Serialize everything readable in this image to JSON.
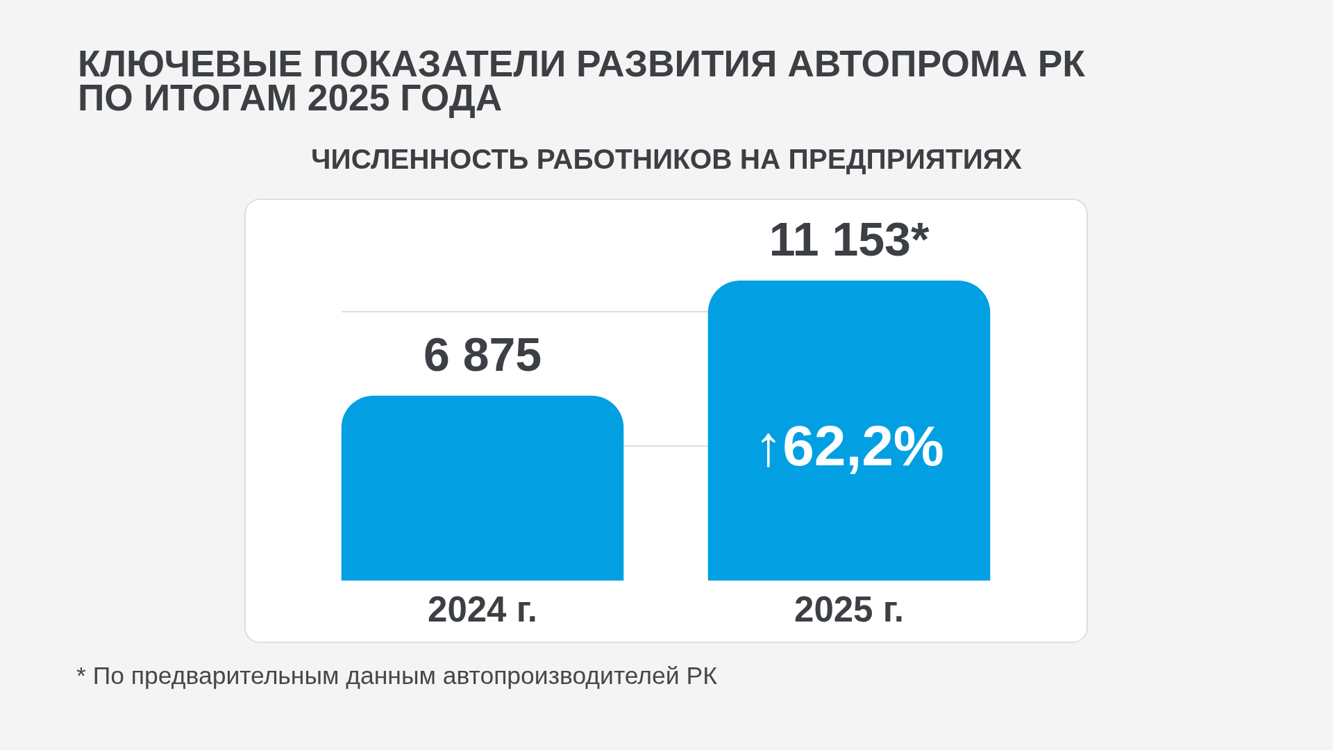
{
  "chart_data": {
    "type": "bar",
    "title": "КЛЮЧЕВЫЕ ПОКАЗАТЕЛИ РАЗВИТИЯ АВТОПРОМА РК ПО ИТОГАМ 2025 ГОДА",
    "subtitle": "ЧИСЛЕННОСТЬ РАБОТНИКОВ НА ПРЕДПРИЯТИЯХ",
    "categories": [
      "2024 г.",
      "2025 г."
    ],
    "values": [
      6875,
      11153
    ],
    "value_labels": [
      "6 875",
      "11 153*"
    ],
    "color": "#02a0e3",
    "ref_lines": [
      {
        "axis": "y",
        "value": 10000,
        "color": "#dcdcdc"
      },
      {
        "axis": "y",
        "value": 5000,
        "color": "#dcdcdc"
      }
    ],
    "tick_labels": "x",
    "annotations": [
      "↑62,2%",
      "* По предварительным данным автопроизводителей РК"
    ]
  }
}
